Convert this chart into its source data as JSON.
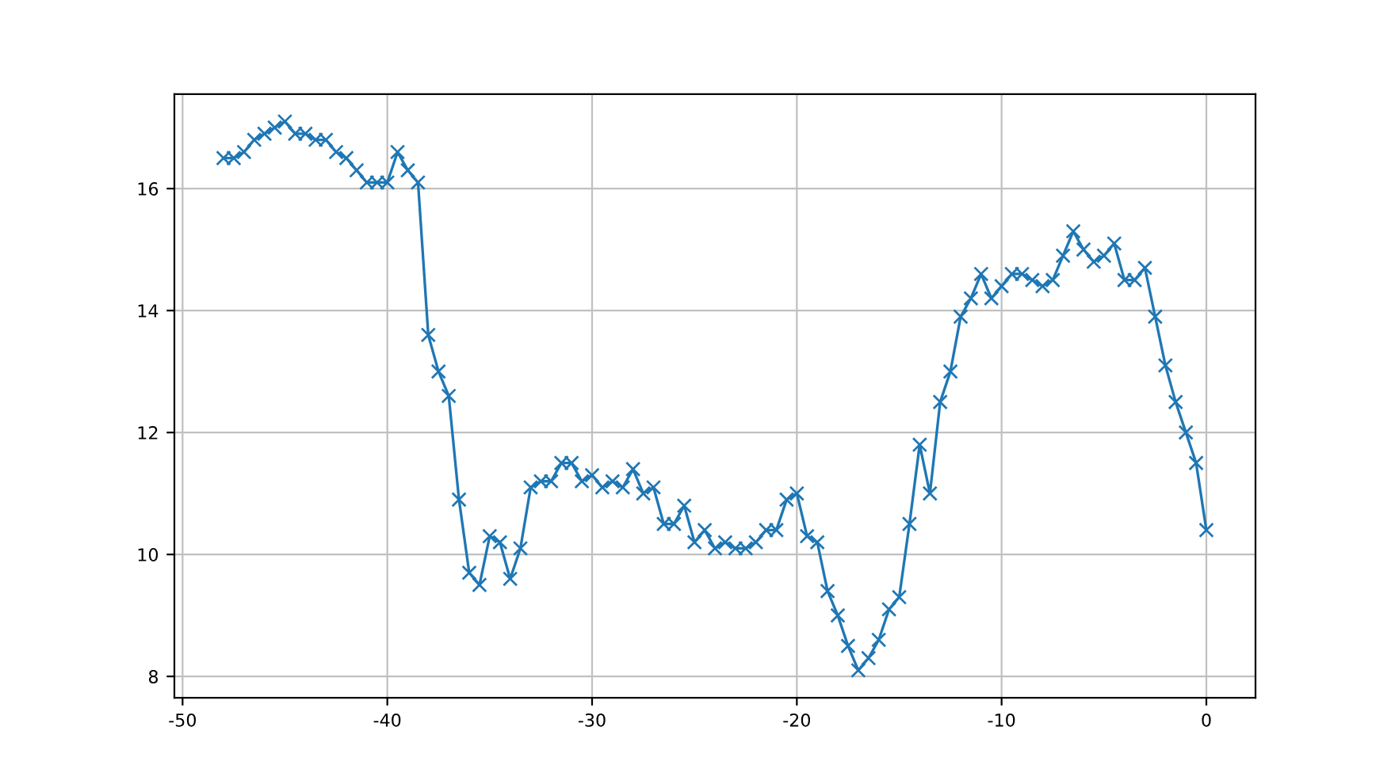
{
  "chart_data": {
    "type": "line",
    "marker": "cross",
    "grid": true,
    "xlim": [
      -50.4,
      2.4
    ],
    "xticks": [
      -50,
      -40,
      -30,
      -20,
      -10,
      0
    ],
    "ylim": [
      7.65,
      17.55
    ],
    "yticks": [
      8,
      10,
      12,
      14,
      16
    ],
    "series": [
      {
        "color": "#1f77b4",
        "x": [
          -48,
          -47.5,
          -47,
          -46.5,
          -46,
          -45.5,
          -45,
          -44.5,
          -44,
          -43.5,
          -43,
          -42.5,
          -42,
          -41.5,
          -41,
          -40.5,
          -40,
          -39.5,
          -39,
          -38.5,
          -38,
          -37.5,
          -37,
          -36.5,
          -36,
          -35.5,
          -35,
          -34.5,
          -34,
          -33.5,
          -33,
          -32.5,
          -32,
          -31.5,
          -31,
          -30.5,
          -30,
          -29.5,
          -29,
          -28.5,
          -28,
          -27.5,
          -27,
          -26.5,
          -26,
          -25.5,
          -25,
          -24.5,
          -24,
          -23.5,
          -23,
          -22.5,
          -22,
          -21.5,
          -21,
          -20.5,
          -20,
          -19.5,
          -19,
          -18.5,
          -18,
          -17.5,
          -17,
          -16.5,
          -16,
          -15.5,
          -15,
          -14.5,
          -14,
          -13.5,
          -13,
          -12.5,
          -12,
          -11.5,
          -11,
          -10.5,
          -10,
          -9.5,
          -9,
          -8.5,
          -8,
          -7.5,
          -7,
          -6.5,
          -6,
          -5.5,
          -5,
          -4.5,
          -4,
          -3.5,
          -3,
          -2.5,
          -2,
          -1.5,
          -1,
          -0.5,
          0
        ],
        "values": [
          16.5,
          16.5,
          16.6,
          16.8,
          16.9,
          17.0,
          17.1,
          16.9,
          16.9,
          16.8,
          16.8,
          16.6,
          16.5,
          16.3,
          16.1,
          16.1,
          16.1,
          16.6,
          16.3,
          16.1,
          13.6,
          13.0,
          12.6,
          10.9,
          9.7,
          9.5,
          10.3,
          10.2,
          9.6,
          10.1,
          11.1,
          11.2,
          11.2,
          11.5,
          11.5,
          11.2,
          11.3,
          11.1,
          11.2,
          11.1,
          11.4,
          11.0,
          11.1,
          10.5,
          10.5,
          10.8,
          10.2,
          10.4,
          10.1,
          10.2,
          10.1,
          10.1,
          10.2,
          10.4,
          10.4,
          10.9,
          11.0,
          10.3,
          10.2,
          9.4,
          9.0,
          8.5,
          8.1,
          8.3,
          8.6,
          9.1,
          9.3,
          10.5,
          11.8,
          11.0,
          12.5,
          13.0,
          13.9,
          14.2,
          14.6,
          14.2,
          14.4,
          14.6,
          14.6,
          14.5,
          14.4,
          14.5,
          14.9,
          15.3,
          15.0,
          14.8,
          14.9,
          15.1,
          14.5,
          14.5,
          14.7,
          13.9,
          13.1,
          12.5,
          12.0,
          11.5,
          10.4
        ]
      }
    ]
  }
}
